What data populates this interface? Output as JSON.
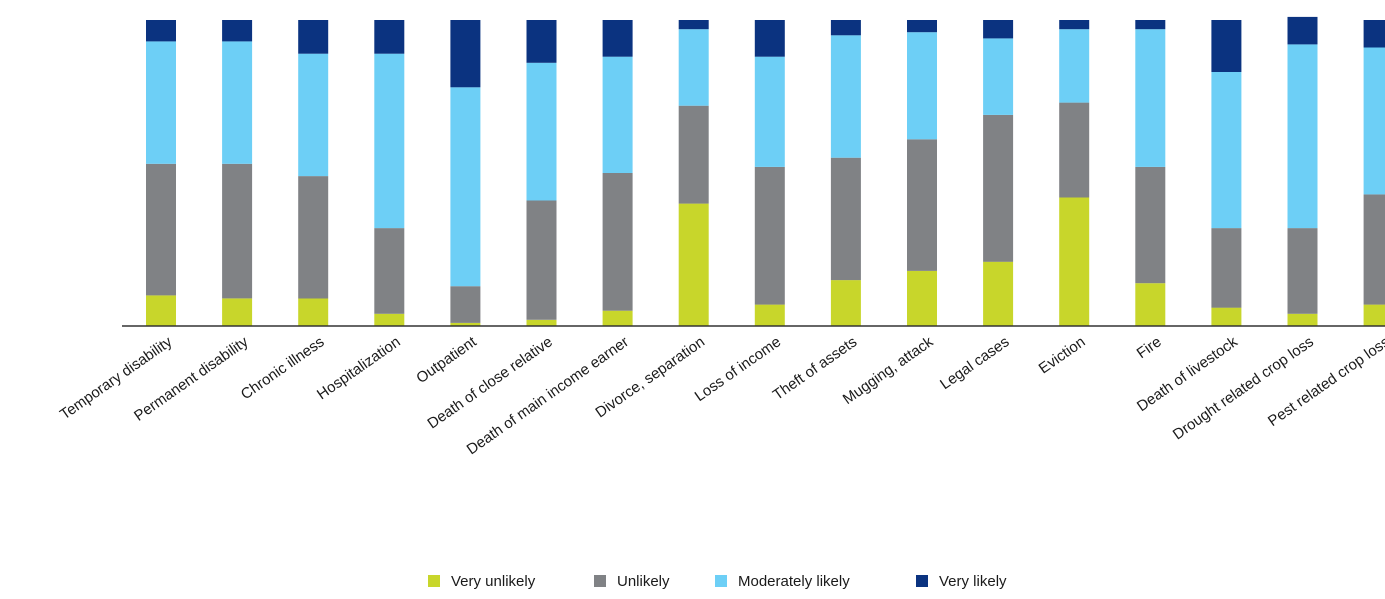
{
  "chart_data": {
    "type": "bar",
    "stacked": true,
    "normalized": true,
    "title": "",
    "xlabel": "",
    "ylabel": "",
    "ylim": [
      0,
      100
    ],
    "grid": false,
    "legend_position": "bottom-center",
    "categories": [
      "Temporary disability",
      "Permanent disability",
      "Chronic illness",
      "Hospitalization",
      "Outpatient",
      "Death of close relative",
      "Death of main income earner",
      "Divorce, separation",
      "Loss of income",
      "Theft of assets",
      "Mugging, attack",
      "Legal cases",
      "Eviction",
      "Fire",
      "Death of livestock",
      "Drought related crop loss",
      "Pest related crop loss"
    ],
    "series": [
      {
        "name": "Very unlikely",
        "color": "#c8d62b",
        "values": [
          10,
          9,
          9,
          4,
          1,
          2,
          5,
          40,
          7,
          15,
          18,
          21,
          42,
          14,
          6,
          4,
          7
        ]
      },
      {
        "name": "Unlikely",
        "color": "#808285",
        "values": [
          43,
          44,
          40,
          28,
          12,
          39,
          45,
          32,
          45,
          40,
          43,
          48,
          31,
          38,
          26,
          28,
          36
        ]
      },
      {
        "name": "Moderately likely",
        "color": "#6dcff6",
        "values": [
          40,
          40,
          40,
          57,
          65,
          45,
          38,
          25,
          36,
          40,
          35,
          25,
          24,
          45,
          51,
          60,
          48
        ]
      },
      {
        "name": "Very likely",
        "color": "#0b3380",
        "values": [
          7,
          7,
          11,
          11,
          22,
          14,
          12,
          3,
          12,
          5,
          4,
          6,
          3,
          3,
          17,
          9,
          9
        ]
      }
    ]
  }
}
